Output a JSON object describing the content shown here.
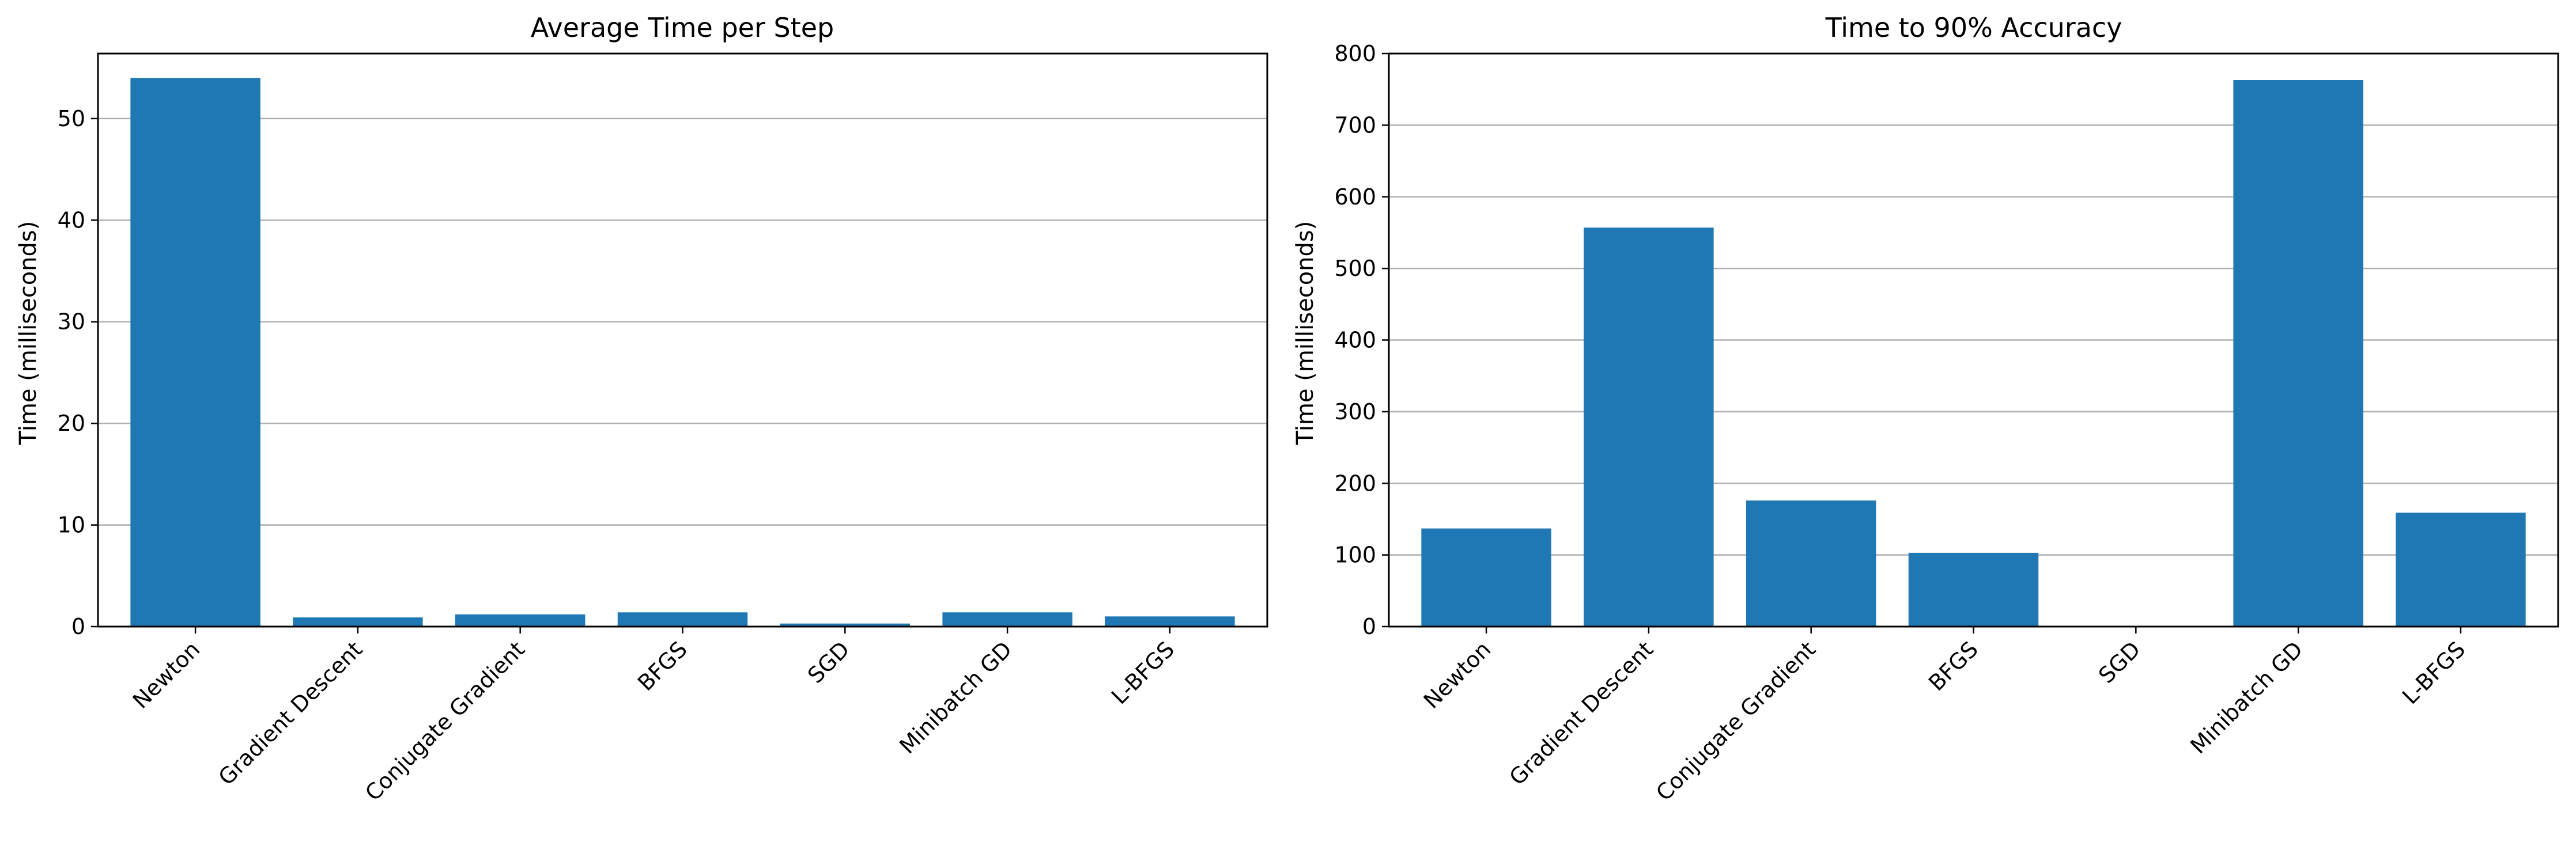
{
  "colors": {
    "bar": "#1f77b4",
    "grid": "#b0b0b0",
    "axis": "#000000",
    "background": "#ffffff"
  },
  "chart_data": [
    {
      "type": "bar",
      "title": "Average Time per Step",
      "xlabel": "",
      "ylabel": "Time (milliseconds)",
      "categories": [
        "Newton",
        "Gradient Descent",
        "Conjugate Gradient",
        "BFGS",
        "SGD",
        "Minibatch GD",
        "L-BFGS"
      ],
      "values": [
        54.0,
        0.9,
        1.2,
        1.4,
        0.3,
        1.4,
        1.0
      ],
      "ylim": [
        0,
        56.4
      ],
      "yticks": [
        0,
        10,
        20,
        30,
        40,
        50
      ],
      "grid": "y",
      "legend": "none"
    },
    {
      "type": "bar",
      "title": "Time to 90% Accuracy",
      "xlabel": "",
      "ylabel": "Time (milliseconds)",
      "categories": [
        "Newton",
        "Gradient Descent",
        "Conjugate Gradient",
        "BFGS",
        "SGD",
        "Minibatch GD",
        "L-BFGS"
      ],
      "values": [
        137,
        557,
        176,
        103,
        0,
        763,
        159
      ],
      "ylim": [
        0,
        800
      ],
      "yticks": [
        0,
        100,
        200,
        300,
        400,
        500,
        600,
        700,
        800
      ],
      "grid": "y",
      "legend": "none"
    }
  ]
}
